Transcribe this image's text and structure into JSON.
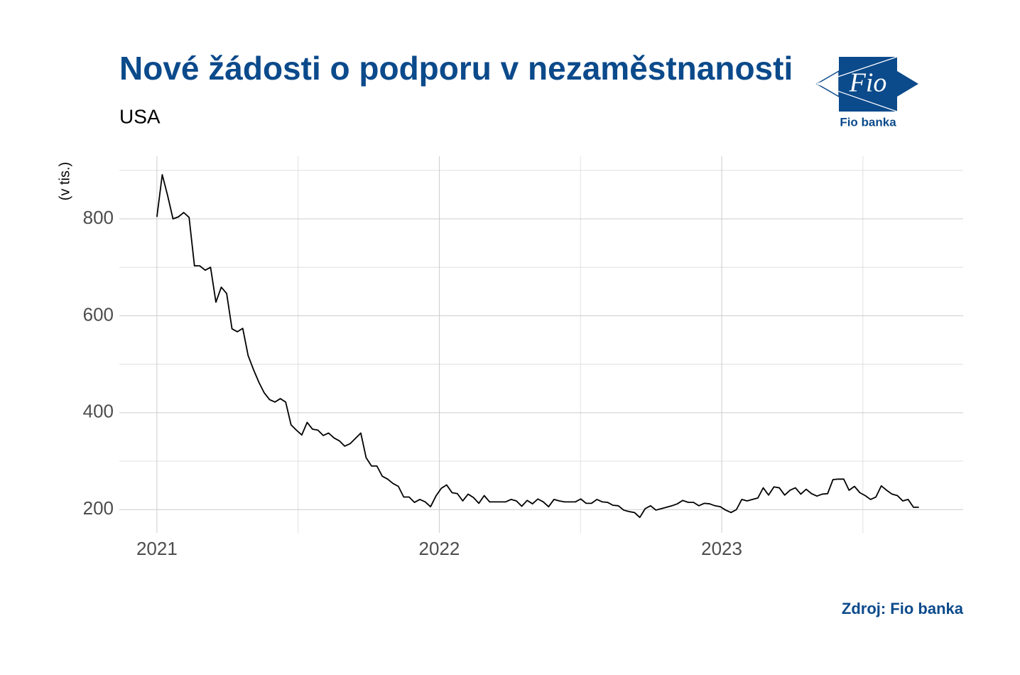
{
  "chart_data": {
    "type": "line",
    "title": "Nové žádosti o podporu v nezaměstnanosti",
    "subtitle": "USA",
    "y_label": "(v tis.)",
    "source": "Zdroj: Fio banka",
    "logo_text": "Fio",
    "logo_caption": "Fio banka",
    "xlim": [
      2020.867,
      2023.855
    ],
    "xticks": [
      2021,
      2022,
      2023
    ],
    "xminor": [
      2021.5,
      2022.5,
      2023.5
    ],
    "ylim": [
      152,
      929
    ],
    "yticks": [
      200,
      400,
      600,
      800
    ],
    "yminor": [
      300,
      500,
      700,
      900
    ],
    "grid": true,
    "x": [
      2021.0,
      2021.019,
      2021.038,
      2021.057,
      2021.076,
      2021.095,
      2021.114,
      2021.133,
      2021.152,
      2021.171,
      2021.19,
      2021.209,
      2021.228,
      2021.247,
      2021.266,
      2021.285,
      2021.304,
      2021.323,
      2021.342,
      2021.361,
      2021.38,
      2021.399,
      2021.418,
      2021.437,
      2021.456,
      2021.475,
      2021.494,
      2021.513,
      2021.532,
      2021.551,
      2021.57,
      2021.589,
      2021.608,
      2021.627,
      2021.646,
      2021.665,
      2021.684,
      2021.703,
      2021.722,
      2021.741,
      2021.76,
      2021.779,
      2021.798,
      2021.817,
      2021.836,
      2021.855,
      2021.874,
      2021.893,
      2021.912,
      2021.931,
      2021.95,
      2021.969,
      2021.988,
      2022.007,
      2022.026,
      2022.045,
      2022.064,
      2022.083,
      2022.102,
      2022.121,
      2022.14,
      2022.159,
      2022.178,
      2022.197,
      2022.216,
      2022.235,
      2022.254,
      2022.273,
      2022.292,
      2022.311,
      2022.33,
      2022.349,
      2022.368,
      2022.387,
      2022.406,
      2022.425,
      2022.444,
      2022.463,
      2022.482,
      2022.501,
      2022.52,
      2022.539,
      2022.558,
      2022.577,
      2022.596,
      2022.615,
      2022.634,
      2022.653,
      2022.672,
      2022.691,
      2022.71,
      2022.729,
      2022.748,
      2022.767,
      2022.786,
      2022.805,
      2022.824,
      2022.843,
      2022.862,
      2022.881,
      2022.9,
      2022.919,
      2022.938,
      2022.957,
      2022.976,
      2022.995,
      2023.014,
      2023.033,
      2023.052,
      2023.071,
      2023.09,
      2023.109,
      2023.128,
      2023.147,
      2023.166,
      2023.185,
      2023.204,
      2023.223,
      2023.242,
      2023.261,
      2023.28,
      2023.299,
      2023.318,
      2023.337,
      2023.356,
      2023.375,
      2023.394,
      2023.413,
      2023.432,
      2023.451,
      2023.47,
      2023.489,
      2023.508,
      2023.527,
      2023.546,
      2023.565,
      2023.584,
      2023.603,
      2023.622,
      2023.641,
      2023.66,
      2023.679,
      2023.698
    ],
    "series": [
      {
        "name": "USA",
        "color": "#000000",
        "values": [
          804,
          891,
          848,
          800,
          804,
          813,
          803,
          703,
          703,
          694,
          700,
          628,
          659,
          646,
          573,
          567,
          574,
          518,
          489,
          463,
          441,
          427,
          422,
          429,
          422,
          375,
          364,
          354,
          380,
          366,
          364,
          353,
          358,
          348,
          342,
          331,
          336,
          347,
          358,
          307,
          290,
          290,
          269,
          263,
          254,
          248,
          226,
          226,
          215,
          221,
          216,
          206,
          228,
          244,
          251,
          235,
          233,
          218,
          232,
          225,
          213,
          229,
          216,
          216,
          216,
          216,
          221,
          218,
          207,
          219,
          212,
          222,
          216,
          206,
          221,
          218,
          216,
          216,
          216,
          222,
          213,
          213,
          221,
          216,
          215,
          209,
          208,
          199,
          196,
          194,
          184,
          202,
          208,
          199,
          202,
          205,
          208,
          212,
          219,
          215,
          215,
          208,
          213,
          212,
          208,
          206,
          199,
          194,
          200,
          221,
          218,
          221,
          224,
          245,
          230,
          247,
          245,
          230,
          240,
          245,
          232,
          242,
          233,
          228,
          232,
          233,
          262,
          263,
          263,
          240,
          248,
          235,
          229,
          221,
          226,
          249,
          240,
          232,
          229,
          218,
          221,
          205,
          205
        ]
      }
    ]
  }
}
